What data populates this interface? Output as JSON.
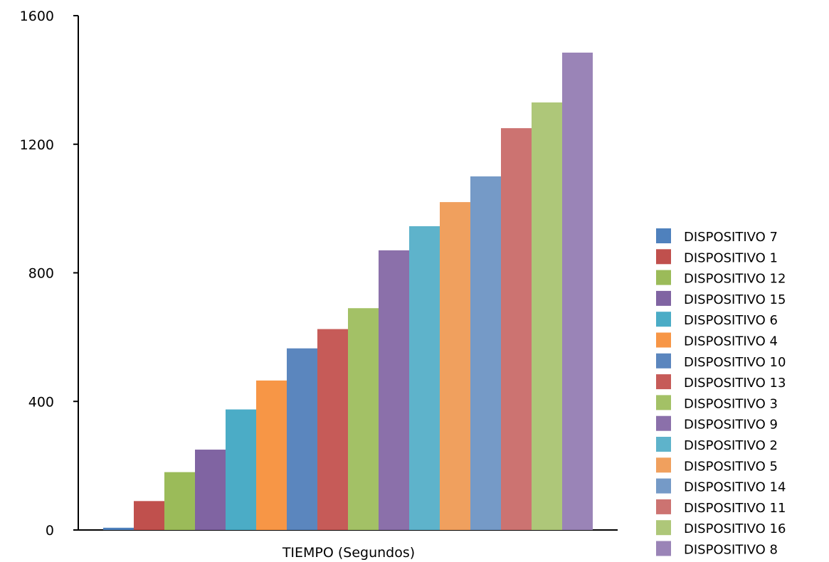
{
  "chart_data": {
    "type": "bar",
    "xlabel": "TIEMPO (Segundos)",
    "ylabel": "",
    "ylim": [
      0,
      1600
    ],
    "yticks": [
      0,
      400,
      800,
      1200,
      1600
    ],
    "grid": false,
    "legend_position": "right",
    "series": [
      {
        "name": "DISPOSITIVO 7",
        "value": 7,
        "color": "#4F81BD"
      },
      {
        "name": "DISPOSITIVO 1",
        "value": 90,
        "color": "#C0504D"
      },
      {
        "name": "DISPOSITIVO 12",
        "value": 180,
        "color": "#9BBB59"
      },
      {
        "name": "DISPOSITIVO 15",
        "value": 250,
        "color": "#8064A2"
      },
      {
        "name": "DISPOSITIVO 6",
        "value": 375,
        "color": "#4BACC6"
      },
      {
        "name": "DISPOSITIVO 4",
        "value": 465,
        "color": "#F79646"
      },
      {
        "name": "DISPOSITIVO 10",
        "value": 565,
        "color": "#5B86BE"
      },
      {
        "name": "DISPOSITIVO 13",
        "value": 625,
        "color": "#C65B58"
      },
      {
        "name": "DISPOSITIVO 3",
        "value": 690,
        "color": "#A3C166"
      },
      {
        "name": "DISPOSITIVO 9",
        "value": 870,
        "color": "#8B70AA"
      },
      {
        "name": "DISPOSITIVO 2",
        "value": 945,
        "color": "#5EB3CB"
      },
      {
        "name": "DISPOSITIVO 5",
        "value": 1020,
        "color": "#F0A05E"
      },
      {
        "name": "DISPOSITIVO 14",
        "value": 1100,
        "color": "#759AC7"
      },
      {
        "name": "DISPOSITIVO 11",
        "value": 1250,
        "color": "#CC7371"
      },
      {
        "name": "DISPOSITIVO 16",
        "value": 1330,
        "color": "#AEC779"
      },
      {
        "name": "DISPOSITIVO 8",
        "value": 1485,
        "color": "#9A84B7"
      }
    ]
  }
}
